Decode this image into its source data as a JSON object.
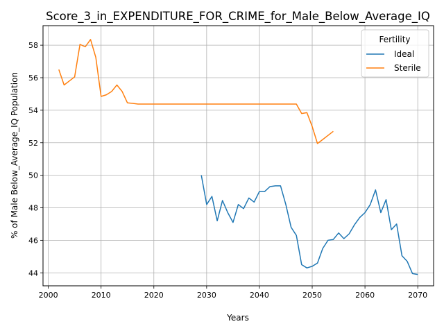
{
  "chart_data": {
    "type": "line",
    "title": "Score_3_in_EXPENDITURE_FOR_CRIME_for_Male_Below_Average_IQ",
    "xlabel": "Years",
    "ylabel": "% of Male Below_Average_IQ Population",
    "xlim": [
      1999,
      2073
    ],
    "ylim": [
      43.2,
      59.2
    ],
    "xticks": [
      2000,
      2010,
      2020,
      2030,
      2040,
      2050,
      2060,
      2070
    ],
    "yticks": [
      44,
      46,
      48,
      50,
      52,
      54,
      56,
      58
    ],
    "grid": true,
    "legend": {
      "title": "Fertility",
      "placement": "top-right"
    },
    "series": [
      {
        "name": "Ideal",
        "color": "#1f77b4",
        "x": [
          2029,
          2030,
          2031,
          2032,
          2033,
          2034,
          2035,
          2036,
          2037,
          2038,
          2039,
          2040,
          2041,
          2042,
          2043,
          2044,
          2045,
          2046,
          2047,
          2048,
          2049,
          2050,
          2051,
          2052,
          2053,
          2054,
          2055,
          2056,
          2057,
          2058,
          2059,
          2060,
          2061,
          2062,
          2063,
          2064,
          2065,
          2066,
          2067,
          2068,
          2069,
          2070
        ],
        "y": [
          50.0,
          48.2,
          48.7,
          47.2,
          48.45,
          47.7,
          47.1,
          48.2,
          47.95,
          48.6,
          48.35,
          49.0,
          49.0,
          49.3,
          49.35,
          49.35,
          48.2,
          46.8,
          46.3,
          44.5,
          44.3,
          44.4,
          44.6,
          45.5,
          46.0,
          46.05,
          46.45,
          46.1,
          46.4,
          46.95,
          47.4,
          47.7,
          48.2,
          49.1,
          47.7,
          48.5,
          46.65,
          47.0,
          45.05,
          44.7,
          43.95,
          43.9
        ]
      },
      {
        "name": "Sterile",
        "color": "#ff7f0e",
        "x": [
          2002,
          2003,
          2004,
          2005,
          2006,
          2007,
          2008,
          2009,
          2010,
          2011,
          2012,
          2013,
          2014,
          2015,
          2016,
          2017,
          2018,
          2019,
          2020,
          2021,
          2022,
          2023,
          2024,
          2025,
          2026,
          2027,
          2028,
          2029,
          2030,
          2031,
          2032,
          2033,
          2034,
          2035,
          2036,
          2037,
          2038,
          2039,
          2040,
          2041,
          2042,
          2043,
          2044,
          2045,
          2046,
          2047,
          2048,
          2049,
          2050,
          2051,
          2052,
          2053,
          2054
        ],
        "y": [
          56.5,
          55.55,
          55.8,
          56.05,
          58.05,
          57.9,
          58.35,
          57.25,
          54.85,
          54.95,
          55.15,
          55.55,
          55.15,
          54.45,
          54.42,
          54.38,
          54.38,
          54.38,
          54.38,
          54.38,
          54.38,
          54.38,
          54.38,
          54.38,
          54.38,
          54.38,
          54.38,
          54.38,
          54.38,
          54.38,
          54.38,
          54.38,
          54.38,
          54.38,
          54.38,
          54.38,
          54.38,
          54.38,
          54.38,
          54.38,
          54.38,
          54.38,
          54.38,
          54.38,
          54.38,
          54.38,
          53.8,
          53.85,
          53.0,
          51.95,
          52.2,
          52.45,
          52.7
        ]
      }
    ]
  }
}
